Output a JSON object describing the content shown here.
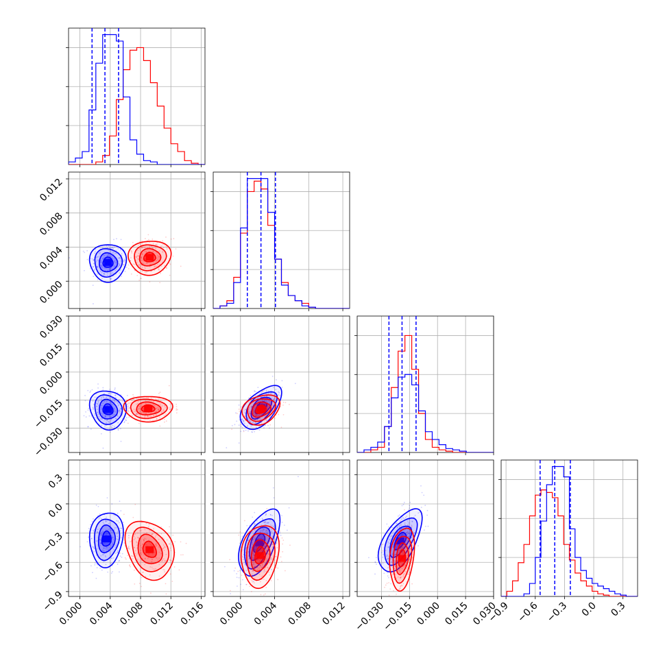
{
  "chart_data": {
    "type": "corner",
    "colors": {
      "blue": "#0000ff",
      "red": "#ff0000",
      "grid": "#b0b0b0"
    },
    "grid": true,
    "series": [
      {
        "color": "blue"
      },
      {
        "color": "red"
      }
    ],
    "params": [
      {
        "range": [
          -0.0015,
          0.0165
        ],
        "ticks": [
          0.0,
          0.004,
          0.008,
          0.012,
          0.016
        ],
        "tick_labels": [
          "0.000",
          "0.004",
          "0.008",
          "0.012",
          "0.016"
        ],
        "quantiles_blue": [
          0.0016,
          0.0033,
          0.0051
        ],
        "hist": {
          "blue": [
            0.02,
            0.05,
            0.1,
            0.42,
            0.78,
            1.0,
            1.0,
            0.95,
            0.52,
            0.19,
            0.08,
            0.03,
            0.02,
            0.0,
            0.0,
            0.0,
            0.0,
            0.0,
            0.0,
            0.0
          ],
          "red": [
            0.0,
            0.0,
            0.0,
            0.0,
            0.02,
            0.07,
            0.22,
            0.5,
            0.73,
            0.88,
            0.9,
            0.8,
            0.63,
            0.45,
            0.28,
            0.16,
            0.1,
            0.03,
            0.01,
            0.0
          ]
        }
      },
      {
        "range": [
          -0.0032,
          0.0128
        ],
        "ticks": [
          0.0,
          0.004,
          0.008,
          0.012
        ],
        "tick_labels": [
          "0.000",
          "0.004",
          "0.008",
          "0.012"
        ],
        "quantiles_blue": [
          0.0008,
          0.0024,
          0.0041
        ],
        "hist": {
          "blue": [
            0.0,
            0.02,
            0.04,
            0.2,
            0.62,
            1.0,
            1.0,
            1.0,
            0.74,
            0.38,
            0.18,
            0.1,
            0.06,
            0.02,
            0.01,
            0.0,
            0.0,
            0.0,
            0.0,
            0.0
          ],
          "red": [
            0.0,
            0.02,
            0.06,
            0.24,
            0.58,
            0.9,
            0.98,
            0.92,
            0.64,
            0.38,
            0.2,
            0.1,
            0.06,
            0.04,
            0.01,
            0.0,
            0.0,
            0.0,
            0.0,
            0.0
          ]
        }
      },
      {
        "range": [
          -0.043,
          0.03
        ],
        "ticks": [
          -0.03,
          -0.015,
          0.0,
          0.015,
          0.03
        ],
        "tick_labels": [
          "−0.030",
          "−0.015",
          "0.000",
          "0.015",
          "0.030"
        ],
        "quantiles_blue": [
          -0.026,
          -0.019,
          -0.0115
        ],
        "hist": {
          "blue": [
            0.0,
            0.02,
            0.04,
            0.08,
            0.2,
            0.42,
            0.58,
            0.6,
            0.52,
            0.32,
            0.16,
            0.1,
            0.06,
            0.03,
            0.02,
            0.01,
            0.0,
            0.0,
            0.0,
            0.0
          ],
          "red": [
            0.0,
            0.0,
            0.02,
            0.04,
            0.2,
            0.5,
            0.78,
            0.9,
            0.64,
            0.3,
            0.1,
            0.04,
            0.02,
            0.01,
            0.0,
            0.0,
            0.0,
            0.0,
            0.0,
            0.0
          ]
        }
      },
      {
        "range": [
          -0.95,
          0.45
        ],
        "ticks": [
          -0.9,
          -0.6,
          -0.3,
          0.0,
          0.3
        ],
        "tick_labels": [
          "−0.9",
          "−0.6",
          "−0.3",
          "0.0",
          "0.3"
        ],
        "quantiles_blue": [
          -0.55,
          -0.4,
          -0.24
        ],
        "hist": {
          "blue": [
            0.0,
            0.0,
            0.0,
            0.0,
            0.02,
            0.1,
            0.3,
            0.58,
            0.86,
            1.0,
            1.0,
            0.92,
            0.52,
            0.3,
            0.2,
            0.14,
            0.1,
            0.08,
            0.06,
            0.04,
            0.02,
            0.01,
            0.0,
            0.0
          ],
          "red": [
            0.0,
            0.04,
            0.12,
            0.26,
            0.4,
            0.62,
            0.78,
            0.82,
            0.8,
            0.76,
            0.62,
            0.4,
            0.28,
            0.18,
            0.12,
            0.08,
            0.04,
            0.02,
            0.01,
            0.0,
            0.0,
            0.0,
            0.0,
            0.0
          ]
        }
      }
    ],
    "pairs": [
      {
        "row": 1,
        "col": 0,
        "blue": {
          "center": [
            0.0037,
            0.0022
          ],
          "sd": [
            0.0012,
            0.0011
          ],
          "rho": 0.0
        },
        "red": {
          "center": [
            0.0092,
            0.0028
          ],
          "sd": [
            0.0014,
            0.001
          ],
          "rho": 0.05
        }
      },
      {
        "row": 2,
        "col": 0,
        "blue": {
          "center": [
            0.0037,
            -0.02
          ],
          "sd": [
            0.0012,
            0.0052
          ],
          "rho": -0.1
        },
        "red": {
          "center": [
            0.009,
            -0.0195
          ],
          "sd": [
            0.0016,
            0.0034
          ],
          "rho": 0.0
        }
      },
      {
        "row": 2,
        "col": 1,
        "blue": {
          "center": [
            0.0024,
            -0.019
          ],
          "sd": [
            0.0012,
            0.0058
          ],
          "rho": 0.55
        },
        "red": {
          "center": [
            0.0024,
            -0.02
          ],
          "sd": [
            0.0011,
            0.004
          ],
          "rho": 0.25
        }
      },
      {
        "row": 3,
        "col": 0,
        "blue": {
          "center": [
            0.0035,
            -0.36
          ],
          "sd": [
            0.0011,
            0.14
          ],
          "rho": 0.1
        },
        "red": {
          "center": [
            0.0092,
            -0.47
          ],
          "sd": [
            0.0016,
            0.15
          ],
          "rho": -0.25
        }
      },
      {
        "row": 3,
        "col": 1,
        "blue": {
          "center": [
            0.0022,
            -0.4
          ],
          "sd": [
            0.0012,
            0.17
          ],
          "rho": 0.55
        },
        "red": {
          "center": [
            0.0023,
            -0.53
          ],
          "sd": [
            0.0011,
            0.16
          ],
          "rho": 0.15
        }
      },
      {
        "row": 3,
        "col": 2,
        "blue": {
          "center": [
            -0.02,
            -0.38
          ],
          "sd": [
            0.0058,
            0.16
          ],
          "rho": 0.6
        },
        "red": {
          "center": [
            -0.019,
            -0.56
          ],
          "sd": [
            0.0033,
            0.16
          ],
          "rho": 0.25
        }
      }
    ]
  }
}
